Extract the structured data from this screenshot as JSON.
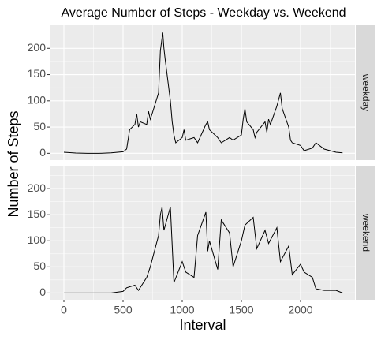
{
  "chart_data": {
    "type": "line",
    "title": "Average Number of Steps - Weekday vs. Weekend",
    "x_label": "Interval",
    "y_label": "Number of Steps",
    "color": "#000000",
    "xlim": [
      -120,
      2460
    ],
    "xticks": [
      0,
      500,
      1000,
      1500,
      2000
    ],
    "xminor": [
      250,
      750,
      1250,
      1750,
      2250
    ],
    "ylim": [
      -13,
      244
    ],
    "yticks": [
      0,
      50,
      100,
      150,
      200
    ],
    "yminor": [
      25,
      75,
      125,
      175,
      225
    ],
    "grid": true,
    "facets": [
      {
        "name": "weekday",
        "x": [
          0,
          100,
          200,
          300,
          400,
          500,
          530,
          545,
          555,
          600,
          615,
          630,
          645,
          700,
          715,
          730,
          745,
          800,
          815,
          835,
          845,
          855,
          900,
          915,
          930,
          945,
          1000,
          1015,
          1030,
          1100,
          1130,
          1200,
          1215,
          1230,
          1300,
          1330,
          1400,
          1430,
          1500,
          1515,
          1530,
          1545,
          1600,
          1615,
          1630,
          1700,
          1715,
          1730,
          1745,
          1800,
          1830,
          1845,
          1900,
          1915,
          1930,
          2000,
          2030,
          2100,
          2130,
          2200,
          2300,
          2355
        ],
        "values": [
          2,
          0.5,
          0,
          0,
          1,
          3,
          8,
          30,
          45,
          55,
          75,
          50,
          60,
          55,
          80,
          65,
          75,
          115,
          195,
          230,
          200,
          180,
          100,
          60,
          35,
          20,
          30,
          45,
          25,
          30,
          20,
          55,
          60,
          45,
          30,
          20,
          30,
          25,
          35,
          65,
          85,
          60,
          45,
          30,
          40,
          60,
          40,
          65,
          55,
          90,
          115,
          85,
          50,
          25,
          20,
          15,
          5,
          10,
          20,
          8,
          2,
          1
        ]
      },
      {
        "name": "weekend",
        "x": [
          0,
          100,
          200,
          300,
          400,
          500,
          530,
          600,
          630,
          700,
          730,
          800,
          815,
          830,
          845,
          900,
          930,
          1000,
          1030,
          1100,
          1130,
          1200,
          1215,
          1230,
          1300,
          1330,
          1400,
          1430,
          1500,
          1530,
          1600,
          1630,
          1700,
          1730,
          1800,
          1830,
          1900,
          1930,
          2000,
          2030,
          2100,
          2130,
          2200,
          2300,
          2355
        ],
        "values": [
          0,
          0,
          0,
          0,
          0,
          3,
          10,
          15,
          5,
          30,
          50,
          110,
          150,
          165,
          120,
          165,
          20,
          60,
          40,
          30,
          110,
          155,
          80,
          100,
          45,
          140,
          115,
          50,
          100,
          130,
          145,
          85,
          120,
          95,
          125,
          60,
          90,
          35,
          55,
          40,
          30,
          8,
          5,
          5,
          0
        ]
      }
    ]
  }
}
